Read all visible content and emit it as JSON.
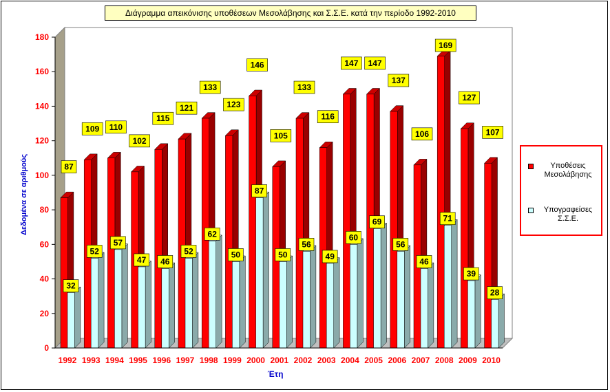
{
  "chart_data": {
    "type": "bar",
    "title": "Διάγραμμα απεικόνισης υποθέσεων Μεσολάβησης  και Σ.Σ.Ε. κατά την περίοδο 1992-2010",
    "xlabel": "Έτη",
    "ylabel": "Δεδομένα σε αριθμούς",
    "ylim": [
      0,
      180
    ],
    "yticks": [
      0,
      20,
      40,
      60,
      80,
      100,
      120,
      140,
      160,
      180
    ],
    "categories": [
      "1992",
      "1993",
      "1994",
      "1995",
      "1996",
      "1997",
      "1998",
      "1999",
      "2000",
      "2001",
      "2002",
      "2003",
      "2004",
      "2005",
      "2006",
      "2007",
      "2008",
      "2009",
      "2010"
    ],
    "series": [
      {
        "name": "Υποθέσεις Μεσολάβησης",
        "color": "#ff0000",
        "values": [
          87,
          109,
          110,
          102,
          115,
          121,
          133,
          123,
          146,
          105,
          133,
          116,
          147,
          147,
          137,
          106,
          169,
          127,
          107
        ]
      },
      {
        "name": "Υπογραφείσες Σ.Σ.Ε.",
        "color": "#ccffff",
        "values": [
          32,
          52,
          57,
          47,
          46,
          52,
          62,
          50,
          87,
          50,
          56,
          49,
          60,
          69,
          56,
          46,
          71,
          39,
          28
        ]
      }
    ],
    "legend_position": "right",
    "grid": false,
    "data_labels": true
  }
}
